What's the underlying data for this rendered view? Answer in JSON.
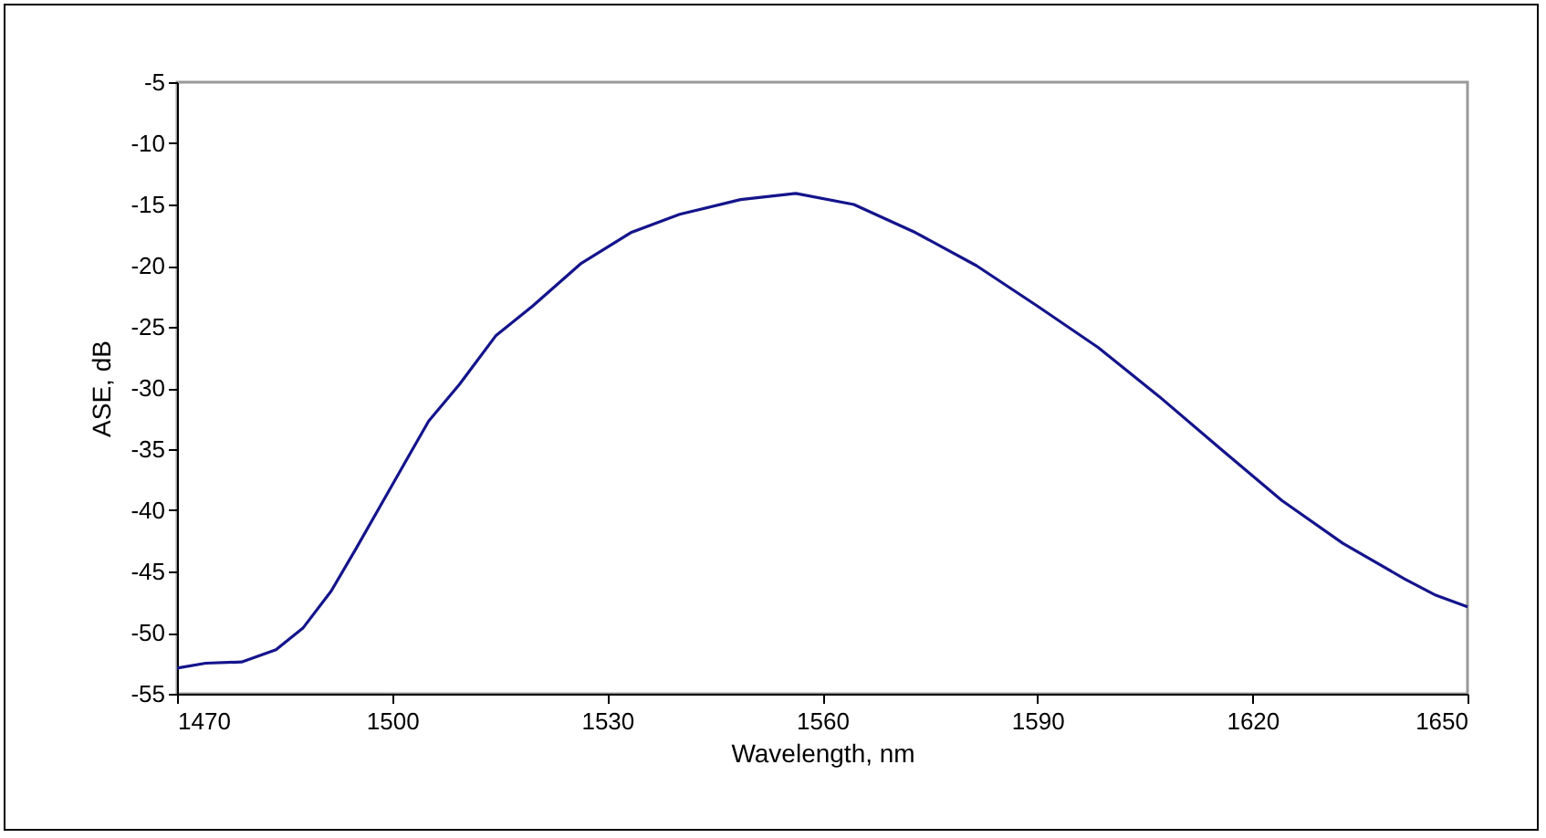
{
  "chart_data": {
    "type": "line",
    "xlabel": "Wavelength, nm",
    "ylabel": "ASE, dB",
    "xlim": [
      1470,
      1650
    ],
    "xticks": [
      1470,
      1500,
      1530,
      1560,
      1590,
      1620,
      1650
    ],
    "ylim": [
      -55,
      -5
    ],
    "yticks": [
      -55,
      -50,
      -45,
      -40,
      -35,
      -30,
      -25,
      -20,
      -15,
      -10,
      -5
    ],
    "grid": false,
    "marker": "none",
    "line_style": "solid",
    "series": [
      {
        "color": "#14148c",
        "x": [
          1470,
          1474,
          1479,
          1483.8,
          1487.6,
          1491.5,
          1494.9,
          1498.3,
          1501.7,
          1505.1,
          1509.4,
          1514.5,
          1519.6,
          1526.4,
          1533.3,
          1540.1,
          1548.6,
          1556.3,
          1564.4,
          1573,
          1581.5,
          1590,
          1598.5,
          1607,
          1615.6,
          1624.1,
          1632.6,
          1641.2,
          1645.4,
          1650
        ],
        "values": [
          -52.9,
          -52.5,
          -52.4,
          -51.4,
          -49.6,
          -46.6,
          -43.2,
          -39.7,
          -36.2,
          -32.7,
          -29.7,
          -25.7,
          -23.3,
          -19.8,
          -17.3,
          -15.8,
          -14.6,
          -14.1,
          -15.0,
          -17.3,
          -20.0,
          -23.3,
          -26.7,
          -30.7,
          -35.0,
          -39.2,
          -42.7,
          -45.6,
          -46.9,
          -47.9
        ]
      }
    ]
  }
}
